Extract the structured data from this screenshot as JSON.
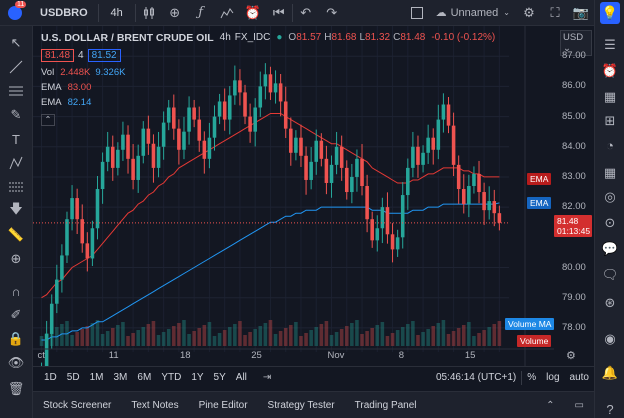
{
  "toolbar": {
    "notification_count": "11",
    "symbol": "USDBRO",
    "interval": "4h",
    "layout_name": "Unnamed"
  },
  "legend": {
    "title": "U.S. DOLLAR / BRENT CRUDE OIL",
    "interval": "4h",
    "source": "FX_IDC",
    "ohlc": [
      {
        "label": "O",
        "value": "81.57"
      },
      {
        "label": "H",
        "value": "81.68"
      },
      {
        "label": "L",
        "value": "81.32"
      },
      {
        "label": "C",
        "value": "81.48"
      }
    ],
    "change": "-0.10 (-0.12%)",
    "bid": "81.48",
    "spread": "4",
    "ask": "81.52",
    "vol_label": "Vol",
    "vol_a": "2.448K",
    "vol_b": "9.326K",
    "ema1_label": "EMA",
    "ema1_value": "83.00",
    "ema2_label": "EMA",
    "ema2_value": "82.14"
  },
  "price_axis": {
    "currency": "USD",
    "ticks": [
      "87.00",
      "86.00",
      "85.00",
      "84.00",
      "83.00",
      "82.00",
      "80.00",
      "79.00",
      "78.00"
    ],
    "last_price": "81.48",
    "countdown": "01:13:45",
    "tags": {
      "ema_red": "EMA",
      "ema_blue": "EMA",
      "volume_ma": "Volume MA",
      "volume": "Volume"
    }
  },
  "time_axis": [
    "ct",
    "11",
    "18",
    "25",
    "Nov",
    "8",
    "15"
  ],
  "range_bar": {
    "ranges": [
      "1D",
      "5D",
      "1M",
      "3M",
      "6M",
      "YTD",
      "1Y",
      "5Y",
      "All"
    ],
    "clock": "05:46:14 (UTC+1)",
    "percent": "%",
    "log": "log",
    "auto": "auto"
  },
  "panels": [
    "Stock Screener",
    "Text Notes",
    "Pine Editor",
    "Strategy Tester",
    "Trading Panel"
  ],
  "colors": {
    "up": "#26a69a",
    "down": "#ef5350",
    "ema_fast": "#e53935",
    "ema_slow": "#2196f3",
    "bg": "#131722"
  },
  "chart_data": {
    "type": "candlestick",
    "interval": "4h",
    "ylim": [
      77.4,
      88.0
    ],
    "x_labels": [
      "ct",
      "11",
      "18",
      "25",
      "Nov",
      "8",
      "15"
    ],
    "close": [
      76.6,
      77.8,
      78.8,
      79.6,
      80.4,
      81.6,
      82.3,
      81.6,
      80.8,
      80.3,
      81.3,
      82.6,
      83.5,
      84.0,
      83.3,
      83.9,
      84.4,
      83.6,
      82.9,
      83.7,
      84.6,
      84.1,
      83.3,
      84.0,
      84.8,
      85.3,
      84.6,
      83.9,
      84.5,
      85.3,
      84.9,
      84.2,
      83.6,
      84.3,
      85.0,
      85.5,
      84.9,
      85.7,
      86.2,
      85.8,
      85.0,
      84.5,
      85.3,
      86.0,
      86.4,
      85.8,
      86.1,
      85.5,
      84.6,
      83.8,
      84.3,
      83.7,
      82.9,
      83.5,
      84.2,
      83.6,
      82.8,
      83.4,
      84.0,
      83.3,
      82.5,
      83.0,
      83.6,
      82.7,
      81.6,
      80.9,
      81.3,
      82.0,
      81.1,
      80.6,
      81.0,
      82.4,
      83.3,
      84.0,
      83.4,
      83.8,
      84.3,
      83.9,
      84.9,
      85.4,
      84.7,
      83.4,
      82.6,
      82.1,
      82.7,
      83.1,
      82.5,
      81.9,
      82.2,
      81.8,
      81.48
    ],
    "ema_fast": [
      79.0,
      79.1,
      79.3,
      79.5,
      79.6,
      79.8,
      80.0,
      80.1,
      80.2,
      80.3,
      80.4,
      80.6,
      80.8,
      81.0,
      81.2,
      81.4,
      81.6,
      81.8,
      81.9,
      82.1,
      82.2,
      82.4,
      82.5,
      82.7,
      82.8,
      83.0,
      83.1,
      83.3,
      83.4,
      83.5,
      83.6,
      83.7,
      83.8,
      83.9,
      84.0,
      84.1,
      84.2,
      84.3,
      84.4,
      84.5,
      84.6,
      84.7,
      84.8,
      84.9,
      85.0,
      85.1,
      85.1,
      85.1,
      85.0,
      84.9,
      84.8,
      84.7,
      84.6,
      84.5,
      84.4,
      84.3,
      84.2,
      84.1,
      84.1,
      84.0,
      83.9,
      83.8,
      83.7,
      83.6,
      83.5,
      83.3,
      83.2,
      83.1,
      83.0,
      82.9,
      82.8,
      82.8,
      82.8,
      82.9,
      82.9,
      83.0,
      83.1,
      83.1,
      83.2,
      83.3,
      83.3,
      83.3,
      83.3,
      83.2,
      83.2,
      83.1,
      83.1,
      83.0,
      83.0,
      83.0,
      83.0
    ],
    "ema_slow": [
      77.6,
      77.6,
      77.7,
      77.7,
      77.8,
      77.8,
      77.9,
      77.9,
      78.0,
      78.0,
      78.1,
      78.2,
      78.2,
      78.3,
      78.4,
      78.5,
      78.6,
      78.7,
      78.8,
      78.9,
      79.0,
      79.1,
      79.2,
      79.3,
      79.4,
      79.5,
      79.6,
      79.7,
      79.8,
      79.9,
      80.0,
      80.1,
      80.2,
      80.3,
      80.4,
      80.5,
      80.6,
      80.7,
      80.8,
      80.9,
      81.0,
      81.1,
      81.2,
      81.3,
      81.4,
      81.5,
      81.5,
      81.6,
      81.7,
      81.7,
      81.8,
      81.8,
      81.9,
      81.9,
      81.9,
      82.0,
      82.0,
      82.0,
      82.0,
      82.0,
      82.0,
      82.0,
      82.0,
      82.0,
      82.0,
      81.9,
      81.9,
      81.9,
      81.8,
      81.8,
      81.8,
      81.8,
      81.8,
      81.9,
      81.9,
      81.9,
      82.0,
      82.0,
      82.0,
      82.1,
      82.1,
      82.1,
      82.1,
      82.1,
      82.1,
      82.1,
      82.1,
      82.1,
      82.1,
      82.1,
      82.14
    ]
  }
}
